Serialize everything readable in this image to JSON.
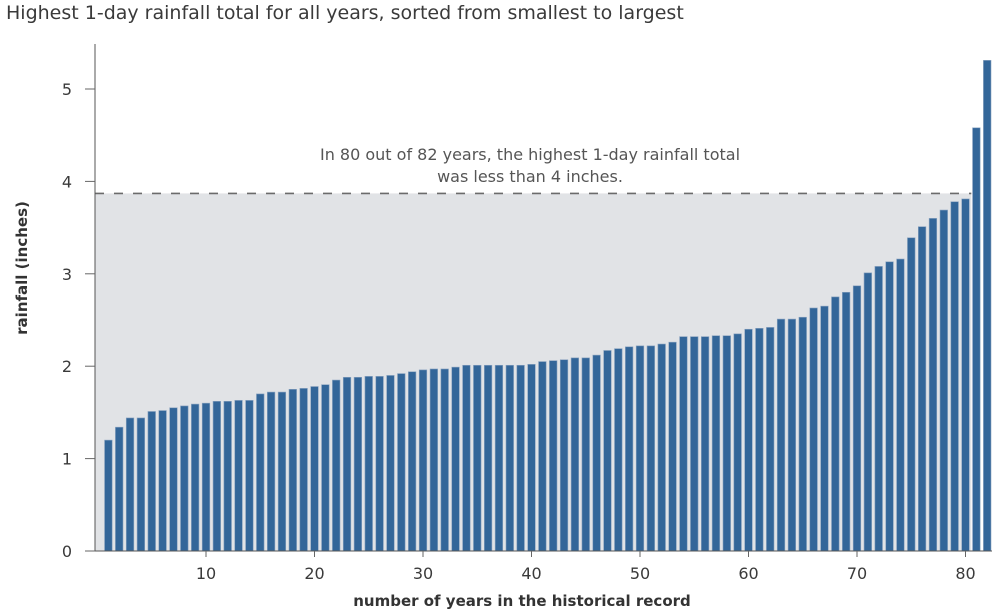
{
  "chart_data": {
    "type": "bar",
    "title": "Highest 1-day rainfall total for all years, sorted from smallest to largest",
    "xlabel": "number of years in the historical record",
    "ylabel": "rainfall (inches)",
    "ylim": [
      0,
      5.4
    ],
    "xlim": [
      0.2,
      82.6
    ],
    "yticks": [
      0,
      1,
      2,
      3,
      4,
      5
    ],
    "xticks": [
      10,
      20,
      30,
      40,
      50,
      60,
      70,
      80
    ],
    "grid": false,
    "bar_color": "#336699",
    "x": [
      1,
      2,
      3,
      4,
      5,
      6,
      7,
      8,
      9,
      10,
      11,
      12,
      13,
      14,
      15,
      16,
      17,
      18,
      19,
      20,
      21,
      22,
      23,
      24,
      25,
      26,
      27,
      28,
      29,
      30,
      31,
      32,
      33,
      34,
      35,
      36,
      37,
      38,
      39,
      40,
      41,
      42,
      43,
      44,
      45,
      46,
      47,
      48,
      49,
      50,
      51,
      52,
      53,
      54,
      55,
      56,
      57,
      58,
      59,
      60,
      61,
      62,
      63,
      64,
      65,
      66,
      67,
      68,
      69,
      70,
      71,
      72,
      73,
      74,
      75,
      76,
      77,
      78,
      79,
      80,
      81,
      82
    ],
    "values": [
      1.2,
      1.34,
      1.44,
      1.44,
      1.51,
      1.52,
      1.55,
      1.57,
      1.59,
      1.6,
      1.62,
      1.62,
      1.63,
      1.63,
      1.7,
      1.72,
      1.72,
      1.75,
      1.76,
      1.78,
      1.8,
      1.85,
      1.88,
      1.88,
      1.89,
      1.89,
      1.9,
      1.92,
      1.94,
      1.96,
      1.97,
      1.97,
      1.99,
      2.01,
      2.01,
      2.01,
      2.01,
      2.01,
      2.01,
      2.02,
      2.05,
      2.06,
      2.07,
      2.09,
      2.09,
      2.12,
      2.17,
      2.19,
      2.21,
      2.22,
      2.22,
      2.24,
      2.26,
      2.32,
      2.32,
      2.32,
      2.33,
      2.33,
      2.35,
      2.4,
      2.41,
      2.42,
      2.51,
      2.51,
      2.53,
      2.63,
      2.65,
      2.75,
      2.8,
      2.87,
      3.01,
      3.08,
      3.13,
      3.16,
      3.39,
      3.51,
      3.6,
      3.69,
      3.78,
      3.81,
      4.58,
      5.31
    ],
    "threshold": {
      "value": 3.87,
      "shaded_region": "below threshold, years 1-80",
      "shade_color": "#e1e3e6",
      "line_style": "dashed",
      "annotation": [
        "In 80 out of 82 years, the highest 1-day rainfall total",
        "was less than 4 inches."
      ]
    }
  }
}
